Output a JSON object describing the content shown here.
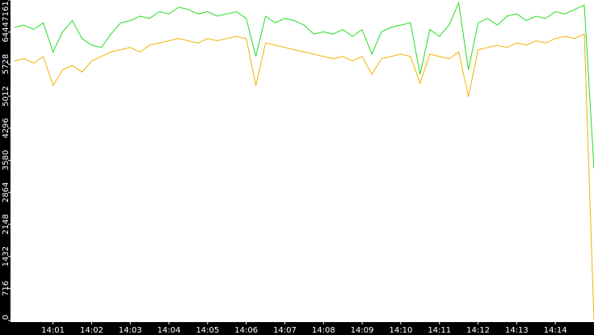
{
  "chart_data": {
    "type": "line",
    "x": [
      840,
      840.25,
      840.5,
      840.75,
      841,
      841.25,
      841.5,
      841.75,
      842,
      842.25,
      842.5,
      842.75,
      843,
      843.25,
      843.5,
      843.75,
      844,
      844.25,
      844.5,
      844.75,
      845,
      845.25,
      845.5,
      845.75,
      846,
      846.25,
      846.5,
      846.75,
      847,
      847.25,
      847.5,
      847.75,
      848,
      848.25,
      848.5,
      848.75,
      849,
      849.25,
      849.5,
      849.75,
      850,
      850.25,
      850.5,
      850.75,
      851,
      851.25,
      851.5,
      851.75,
      852,
      852.25,
      852.5,
      852.75,
      853,
      853.25,
      853.5,
      853.75,
      854,
      854.25,
      854.5,
      854.75,
      855
    ],
    "series": [
      {
        "color": "#22dd22",
        "values": [
          6550,
          6600,
          6500,
          6650,
          6000,
          6450,
          6700,
          6300,
          6150,
          6100,
          6400,
          6650,
          6700,
          6800,
          6750,
          6900,
          6850,
          7000,
          6950,
          6850,
          6900,
          6800,
          6850,
          6900,
          6750,
          5900,
          6800,
          6650,
          6750,
          6700,
          6600,
          6400,
          6450,
          6400,
          6500,
          6350,
          6500,
          5950,
          6450,
          6550,
          6600,
          6650,
          5500,
          6500,
          6350,
          6600,
          7100,
          5600,
          6650,
          6750,
          6600,
          6800,
          6850,
          6700,
          6800,
          6750,
          6900,
          6850,
          6950,
          7050,
          3400
        ]
      },
      {
        "color": "#f0b400",
        "values": [
          5800,
          5850,
          5750,
          5900,
          5250,
          5600,
          5700,
          5550,
          5800,
          5900,
          6000,
          6050,
          6100,
          6000,
          6150,
          6200,
          6250,
          6300,
          6250,
          6200,
          6300,
          6250,
          6300,
          6350,
          6300,
          5250,
          6200,
          6150,
          6100,
          6050,
          6000,
          5950,
          5900,
          5850,
          5900,
          5800,
          5900,
          5500,
          5850,
          5900,
          5950,
          5900,
          5300,
          5950,
          5900,
          5850,
          6000,
          5000,
          6050,
          6100,
          6150,
          6100,
          6200,
          6150,
          6250,
          6200,
          6300,
          6350,
          6300,
          6400,
          0
        ]
      }
    ],
    "xlim": [
      839.9,
      855
    ],
    "xticks": [
      {
        "value": 841,
        "label": "14:01"
      },
      {
        "value": 842,
        "label": "14:02"
      },
      {
        "value": 843,
        "label": "14:03"
      },
      {
        "value": 844,
        "label": "14:04"
      },
      {
        "value": 845,
        "label": "14:05"
      },
      {
        "value": 846,
        "label": "14:06"
      },
      {
        "value": 847,
        "label": "14:07"
      },
      {
        "value": 848,
        "label": "14:08"
      },
      {
        "value": 849,
        "label": "14:09"
      },
      {
        "value": 850,
        "label": "14:10"
      },
      {
        "value": 851,
        "label": "14:11"
      },
      {
        "value": 852,
        "label": "14:12"
      },
      {
        "value": 853,
        "label": "14:13"
      },
      {
        "value": 854,
        "label": "14:14"
      }
    ],
    "ylim": [
      0,
      7161
    ],
    "yticks": [
      0,
      716,
      1432,
      2148,
      2864,
      3580,
      4296,
      5012,
      5728,
      6444,
      7161
    ]
  }
}
